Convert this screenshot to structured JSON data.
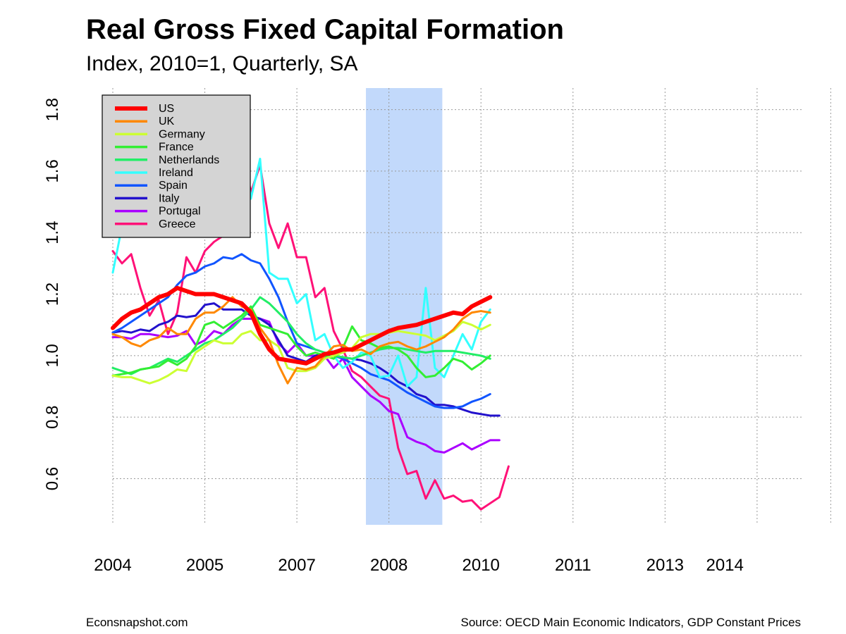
{
  "chart_data": {
    "type": "line",
    "title": "Real Gross Fixed Capital Formation",
    "subtitle": "Index, 2010=1, Quarterly, SA",
    "xlabel": "",
    "ylabel": "",
    "ylim": [
      0.45,
      1.87
    ],
    "yticks": [
      0.6,
      0.8,
      1.0,
      1.2,
      1.4,
      1.6,
      1.8
    ],
    "ytick_labels": [
      "0.6",
      "0.8",
      "1.0",
      "1.2",
      "1.4",
      "1.6",
      "1.8"
    ],
    "xlim": [
      2004.0,
      2011.2
    ],
    "xticks": [
      2004.0,
      2005.0,
      2006.0,
      2007.0,
      2008.0,
      2009.0,
      2010.0,
      2011.0,
      2011.8
    ],
    "xtick_labels": [
      "2004",
      "2005",
      "2007",
      "2008",
      "2010",
      "2011",
      "2013",
      "2014"
    ],
    "xtick_label_positions": [
      2004.0,
      2005.0,
      2006.0,
      2007.0,
      2008.0,
      2009.0,
      2010.0,
      2010.65
    ],
    "grid": true,
    "legend_position": "top-left",
    "recession_shading": {
      "x0": 2006.75,
      "x1": 2007.58,
      "color": "#c2d9fb"
    },
    "quarter_start": 2004.0,
    "quarter_step": 0.1,
    "series": [
      {
        "name": "US",
        "color": "#ff0000",
        "width": 6,
        "values": [
          1.09,
          1.12,
          1.14,
          1.15,
          1.17,
          1.19,
          1.2,
          1.22,
          1.21,
          1.2,
          1.2,
          1.2,
          1.19,
          1.18,
          1.17,
          1.14,
          1.07,
          1.02,
          0.99,
          0.985,
          0.98,
          0.975,
          0.99,
          1.005,
          1.01,
          1.02,
          1.02,
          1.035,
          1.05,
          1.065,
          1.08,
          1.09,
          1.095,
          1.1,
          1.11,
          1.12,
          1.13,
          1.14,
          1.135,
          1.16,
          1.175,
          1.19
        ]
      },
      {
        "name": "UK",
        "color": "#ff8800",
        "width": 3,
        "values": [
          1.07,
          1.06,
          1.04,
          1.03,
          1.05,
          1.06,
          1.09,
          1.07,
          1.07,
          1.12,
          1.14,
          1.14,
          1.16,
          1.19,
          1.16,
          1.15,
          1.09,
          1.05,
          0.97,
          0.91,
          0.96,
          0.955,
          0.965,
          1.0,
          1.03,
          1.035,
          1.015,
          1.02,
          1.005,
          1.03,
          1.04,
          1.045,
          1.03,
          1.02,
          1.03,
          1.045,
          1.06,
          1.085,
          1.12,
          1.14,
          1.145,
          1.14
        ]
      },
      {
        "name": "Germany",
        "color": "#ccff33",
        "width": 3,
        "values": [
          0.935,
          0.93,
          0.93,
          0.92,
          0.91,
          0.92,
          0.935,
          0.955,
          0.95,
          1.01,
          1.03,
          1.05,
          1.04,
          1.04,
          1.07,
          1.08,
          1.05,
          1.05,
          1.03,
          0.96,
          0.95,
          0.95,
          0.96,
          0.99,
          1.0,
          1.01,
          1.025,
          1.06,
          1.07,
          1.07,
          1.075,
          1.08,
          1.075,
          1.07,
          1.065,
          1.05,
          1.065,
          1.08,
          1.11,
          1.1,
          1.085,
          1.1
        ]
      },
      {
        "name": "France",
        "color": "#33ee33",
        "width": 3,
        "values": [
          0.935,
          0.94,
          0.945,
          0.955,
          0.96,
          0.965,
          0.985,
          0.97,
          0.99,
          1.03,
          1.1,
          1.11,
          1.09,
          1.11,
          1.13,
          1.16,
          1.1,
          1.09,
          1.08,
          1.07,
          1.03,
          1.0,
          1.01,
          1.0,
          0.99,
          1.025,
          1.095,
          1.05,
          1.04,
          1.025,
          1.03,
          1.02,
          1.0,
          0.96,
          0.93,
          0.935,
          0.96,
          0.99,
          0.98,
          0.955,
          0.975,
          1.0
        ]
      },
      {
        "name": "Netherlands",
        "color": "#22ee66",
        "width": 3,
        "values": [
          0.96,
          0.95,
          0.94,
          0.955,
          0.96,
          0.975,
          0.99,
          0.98,
          1.0,
          1.02,
          1.04,
          1.05,
          1.07,
          1.09,
          1.12,
          1.15,
          1.19,
          1.17,
          1.14,
          1.11,
          1.07,
          1.04,
          1.02,
          1.01,
          1.0,
          0.995,
          0.99,
          1.0,
          1.01,
          1.02,
          1.025,
          1.025,
          1.02,
          1.015,
          1.01,
          1.015,
          1.015,
          1.015,
          1.01,
          1.005,
          1.0,
          0.99
        ]
      },
      {
        "name": "Ireland",
        "color": "#33ffff",
        "width": 3,
        "values": [
          1.27,
          1.42,
          1.5,
          1.54,
          1.56,
          1.58,
          1.58,
          1.57,
          1.73,
          1.74,
          1.82,
          1.69,
          1.64,
          1.65,
          1.73,
          1.51,
          1.64,
          1.27,
          1.25,
          1.25,
          1.17,
          1.2,
          1.05,
          1.07,
          1.0,
          0.96,
          0.98,
          1.01,
          1.0,
          0.93,
          0.935,
          1.0,
          0.9,
          0.93,
          1.22,
          0.96,
          0.93,
          1.0,
          1.07,
          1.02,
          1.11,
          1.15
        ]
      },
      {
        "name": "Spain",
        "color": "#1155ff",
        "width": 3,
        "values": [
          1.075,
          1.09,
          1.11,
          1.13,
          1.15,
          1.17,
          1.19,
          1.23,
          1.26,
          1.27,
          1.29,
          1.3,
          1.32,
          1.315,
          1.33,
          1.31,
          1.3,
          1.25,
          1.19,
          1.11,
          1.04,
          1.03,
          1.02,
          1.01,
          1.0,
          0.99,
          0.975,
          0.96,
          0.94,
          0.93,
          0.92,
          0.9,
          0.88,
          0.865,
          0.85,
          0.835,
          0.83,
          0.83,
          0.835,
          0.85,
          0.86,
          0.875
        ]
      },
      {
        "name": "Italy",
        "color": "#2211cc",
        "width": 3,
        "values": [
          1.075,
          1.08,
          1.075,
          1.085,
          1.08,
          1.1,
          1.11,
          1.13,
          1.125,
          1.13,
          1.165,
          1.17,
          1.15,
          1.15,
          1.15,
          1.13,
          1.12,
          1.1,
          1.05,
          1.0,
          0.99,
          0.98,
          1.0,
          1.005,
          1.0,
          0.995,
          0.99,
          0.985,
          0.975,
          0.96,
          0.94,
          0.915,
          0.9,
          0.875,
          0.865,
          0.84,
          0.84,
          0.835,
          0.825,
          0.815,
          0.81,
          0.805,
          0.805
        ]
      },
      {
        "name": "Portugal",
        "color": "#aa00ff",
        "width": 3,
        "values": [
          1.06,
          1.06,
          1.055,
          1.07,
          1.07,
          1.065,
          1.06,
          1.065,
          1.08,
          1.035,
          1.05,
          1.08,
          1.07,
          1.1,
          1.12,
          1.12,
          1.12,
          1.11,
          1.04,
          1.01,
          1.04,
          1.0,
          1.0,
          1.0,
          0.96,
          0.99,
          0.93,
          0.9,
          0.87,
          0.85,
          0.82,
          0.81,
          0.735,
          0.72,
          0.71,
          0.69,
          0.685,
          0.7,
          0.715,
          0.695,
          0.71,
          0.725,
          0.725
        ]
      },
      {
        "name": "Greece",
        "color": "#ff1177",
        "width": 3,
        "values": [
          1.34,
          1.3,
          1.33,
          1.22,
          1.13,
          1.18,
          1.07,
          1.14,
          1.32,
          1.27,
          1.34,
          1.37,
          1.39,
          1.61,
          1.7,
          1.53,
          1.62,
          1.43,
          1.35,
          1.43,
          1.32,
          1.32,
          1.19,
          1.22,
          1.08,
          1.02,
          0.95,
          0.93,
          0.9,
          0.87,
          0.86,
          0.7,
          0.615,
          0.625,
          0.535,
          0.595,
          0.535,
          0.545,
          0.525,
          0.53,
          0.5,
          0.52,
          0.54,
          0.64
        ]
      }
    ]
  },
  "footer": {
    "left": "Econsnapshot.com",
    "right": "Source: OECD Main Economic Indicators, GDP Constant Prices"
  }
}
